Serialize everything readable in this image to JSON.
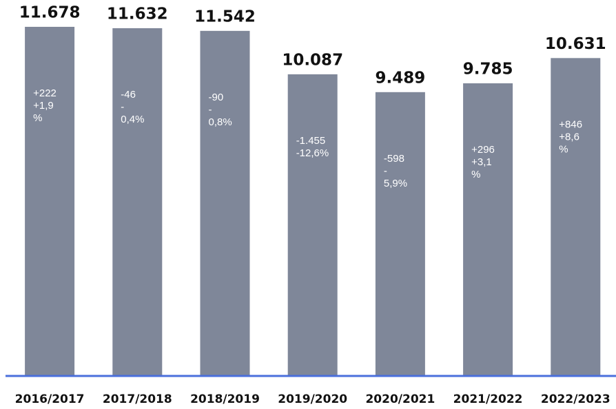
{
  "chart_data": {
    "type": "bar",
    "categories": [
      "2016/2017",
      "2017/2018",
      "2018/2019",
      "2019/2020",
      "2020/2021",
      "2021/2022",
      "2022/2023"
    ],
    "values": [
      11678,
      11632,
      11542,
      10087,
      9489,
      9785,
      10631
    ],
    "value_labels": [
      "11.678",
      "11.632",
      "11.542",
      "10.087",
      "9.489",
      "9.785",
      "10.631"
    ],
    "annotations": [
      [
        "+222",
        "+1,9",
        "%"
      ],
      [
        "-46",
        "-",
        "0,4%"
      ],
      [
        "-90",
        "-",
        "0,8%"
      ],
      [
        "-1.455",
        "-12,6%"
      ],
      [
        "-598",
        "-",
        "5,9%"
      ],
      [
        "+296",
        "+3,1",
        "%"
      ],
      [
        "+846",
        "+8,6",
        "%"
      ]
    ],
    "color": "#7f8799",
    "baseline_color": "#4a6fdc",
    "ylim": [
      0,
      12000
    ]
  }
}
